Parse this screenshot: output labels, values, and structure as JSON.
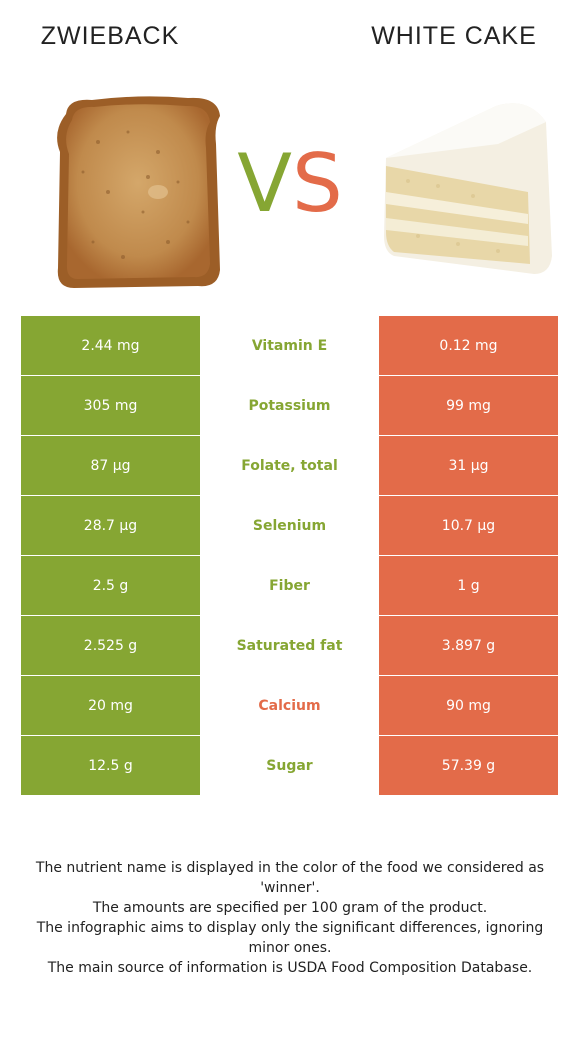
{
  "left_food": {
    "name": "ZWIEBACK",
    "color": "#86a633"
  },
  "right_food": {
    "name": "WHITE CAKE",
    "color": "#e36b49"
  },
  "vs": {
    "v": "V",
    "s": "S"
  },
  "rows": [
    {
      "nutrient": "Vitamin E",
      "left": "2.44 mg",
      "right": "0.12 mg",
      "winner": "left"
    },
    {
      "nutrient": "Potassium",
      "left": "305 mg",
      "right": "99 mg",
      "winner": "left"
    },
    {
      "nutrient": "Folate, total",
      "left": "87 µg",
      "right": "31 µg",
      "winner": "left"
    },
    {
      "nutrient": "Selenium",
      "left": "28.7 µg",
      "right": "10.7 µg",
      "winner": "left"
    },
    {
      "nutrient": "Fiber",
      "left": "2.5 g",
      "right": "1 g",
      "winner": "left"
    },
    {
      "nutrient": "Saturated fat",
      "left": "2.525 g",
      "right": "3.897 g",
      "winner": "left"
    },
    {
      "nutrient": "Calcium",
      "left": "20 mg",
      "right": "90 mg",
      "winner": "right"
    },
    {
      "nutrient": "Sugar",
      "left": "12.5 g",
      "right": "57.39 g",
      "winner": "left"
    }
  ],
  "footnote": [
    "The nutrient name is displayed in the color of the food we considered as 'winner'.",
    "The amounts are specified per 100 gram of the product.",
    "The infographic aims to display only the significant differences, ignoring minor ones.",
    "The main source of information is USDA Food Composition Database."
  ]
}
